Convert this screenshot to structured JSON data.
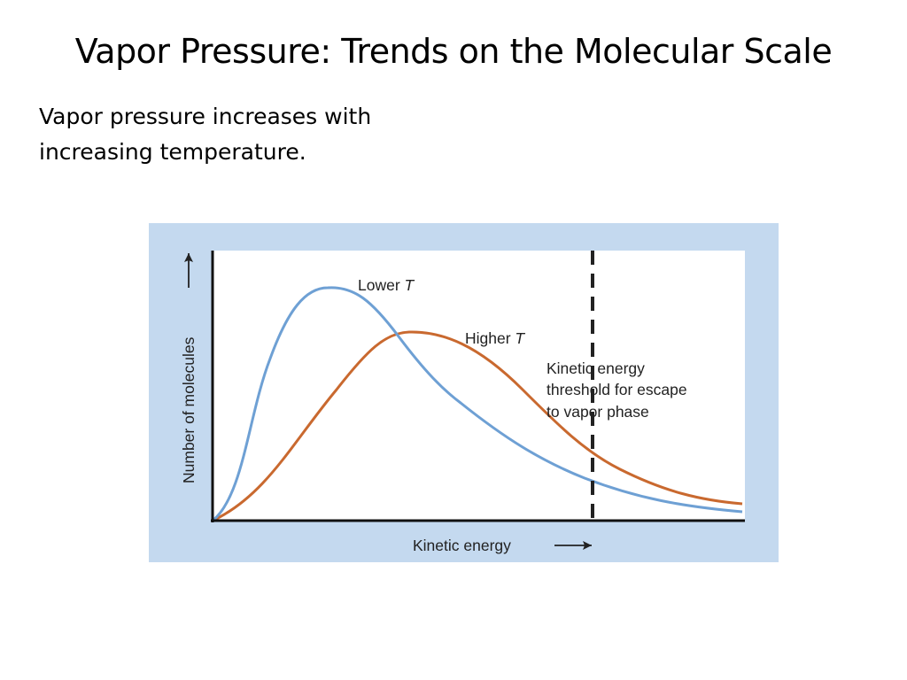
{
  "slide": {
    "title": "Vapor Pressure: Trends on the Molecular Scale",
    "body": "Vapor pressure increases with increasing temperature."
  },
  "figure": {
    "y_axis_label": "Number of molecules",
    "x_axis_label": "Kinetic energy",
    "curves": {
      "lower_prefix": "Lower ",
      "higher_prefix": "Higher ",
      "variable": "T"
    },
    "threshold_label_lines": [
      "Kinetic energy",
      "threshold for escape",
      "to vapor phase"
    ],
    "colors": {
      "panel_background": "#c4d9ef",
      "plot_background": "#ffffff",
      "lower_t_curve": "#6ea0d4",
      "higher_t_curve": "#c9692f",
      "threshold_line": "#222222",
      "axes": "#111111"
    }
  }
}
